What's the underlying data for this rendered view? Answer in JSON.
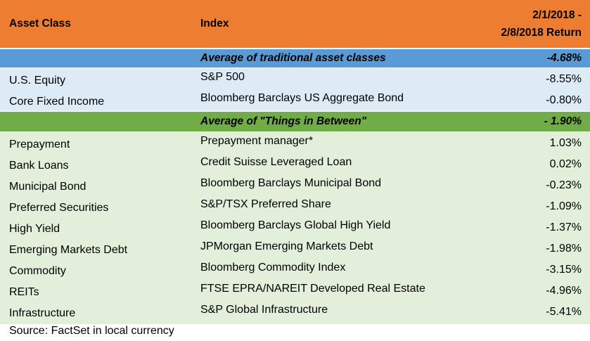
{
  "header": {
    "asset_class": "Asset Class",
    "index": "Index",
    "return_line1": "2/1/2018 -",
    "return_line2": "2/8/2018 Return"
  },
  "traditional_avg": {
    "label": "Average of traditional asset classes",
    "value": "-4.68%"
  },
  "traditional_rows": [
    {
      "asset": "U.S. Equity",
      "index": "S&P 500",
      "ret": "-8.55%"
    },
    {
      "asset": "Core Fixed Income",
      "index": "Bloomberg Barclays US Aggregate Bond",
      "ret": "-0.80%"
    }
  ],
  "between_avg": {
    "label": "Average of \"Things in Between\"",
    "value": "- 1.90%"
  },
  "between_rows": [
    {
      "asset": "Prepayment",
      "index": "Prepayment manager*",
      "ret": "1.03%"
    },
    {
      "asset": "Bank Loans",
      "index": "Credit Suisse Leveraged Loan",
      "ret": "0.02%"
    },
    {
      "asset": "Municipal Bond",
      "index": "Bloomberg Barclays Municipal Bond",
      "ret": "-0.23%"
    },
    {
      "asset": "Preferred Securities",
      "index": "S&P/TSX Preferred Share",
      "ret": "-1.09%"
    },
    {
      "asset": "High Yield",
      "index": "Bloomberg Barclays Global High Yield",
      "ret": "-1.37%"
    },
    {
      "asset": "Emerging Markets Debt",
      "index": "JPMorgan Emerging Markets Debt",
      "ret": "-1.98%"
    },
    {
      "asset": "Commodity",
      "index": "Bloomberg Commodity Index",
      "ret": "-3.15%"
    },
    {
      "asset": "REITs",
      "index": "FTSE EPRA/NAREIT Developed Real Estate",
      "ret": "-4.96%"
    },
    {
      "asset": "Infrastructure",
      "index": "S&P Global Infrastructure",
      "ret": "-5.41%"
    }
  ],
  "source": "Source: FactSet in local currency",
  "colors": {
    "header": "#ED7D31",
    "traditional_avg": "#5B9BD5",
    "traditional_rows": "#DDEBF7",
    "between_avg": "#70AD47",
    "between_rows": "#E2EFDA"
  }
}
